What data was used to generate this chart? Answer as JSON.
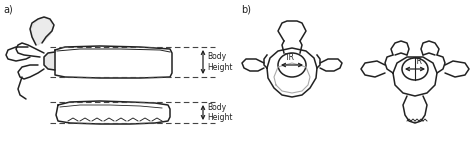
{
  "background_color": "#ffffff",
  "label_a": "a)",
  "label_b": "b)",
  "body_height_label": "Body\nHeight",
  "tr_label": "TR",
  "line_color": "#222222",
  "dashed_color": "#444444",
  "gray_fill": "#b0b0b0",
  "light_gray_fill": "#cccccc"
}
